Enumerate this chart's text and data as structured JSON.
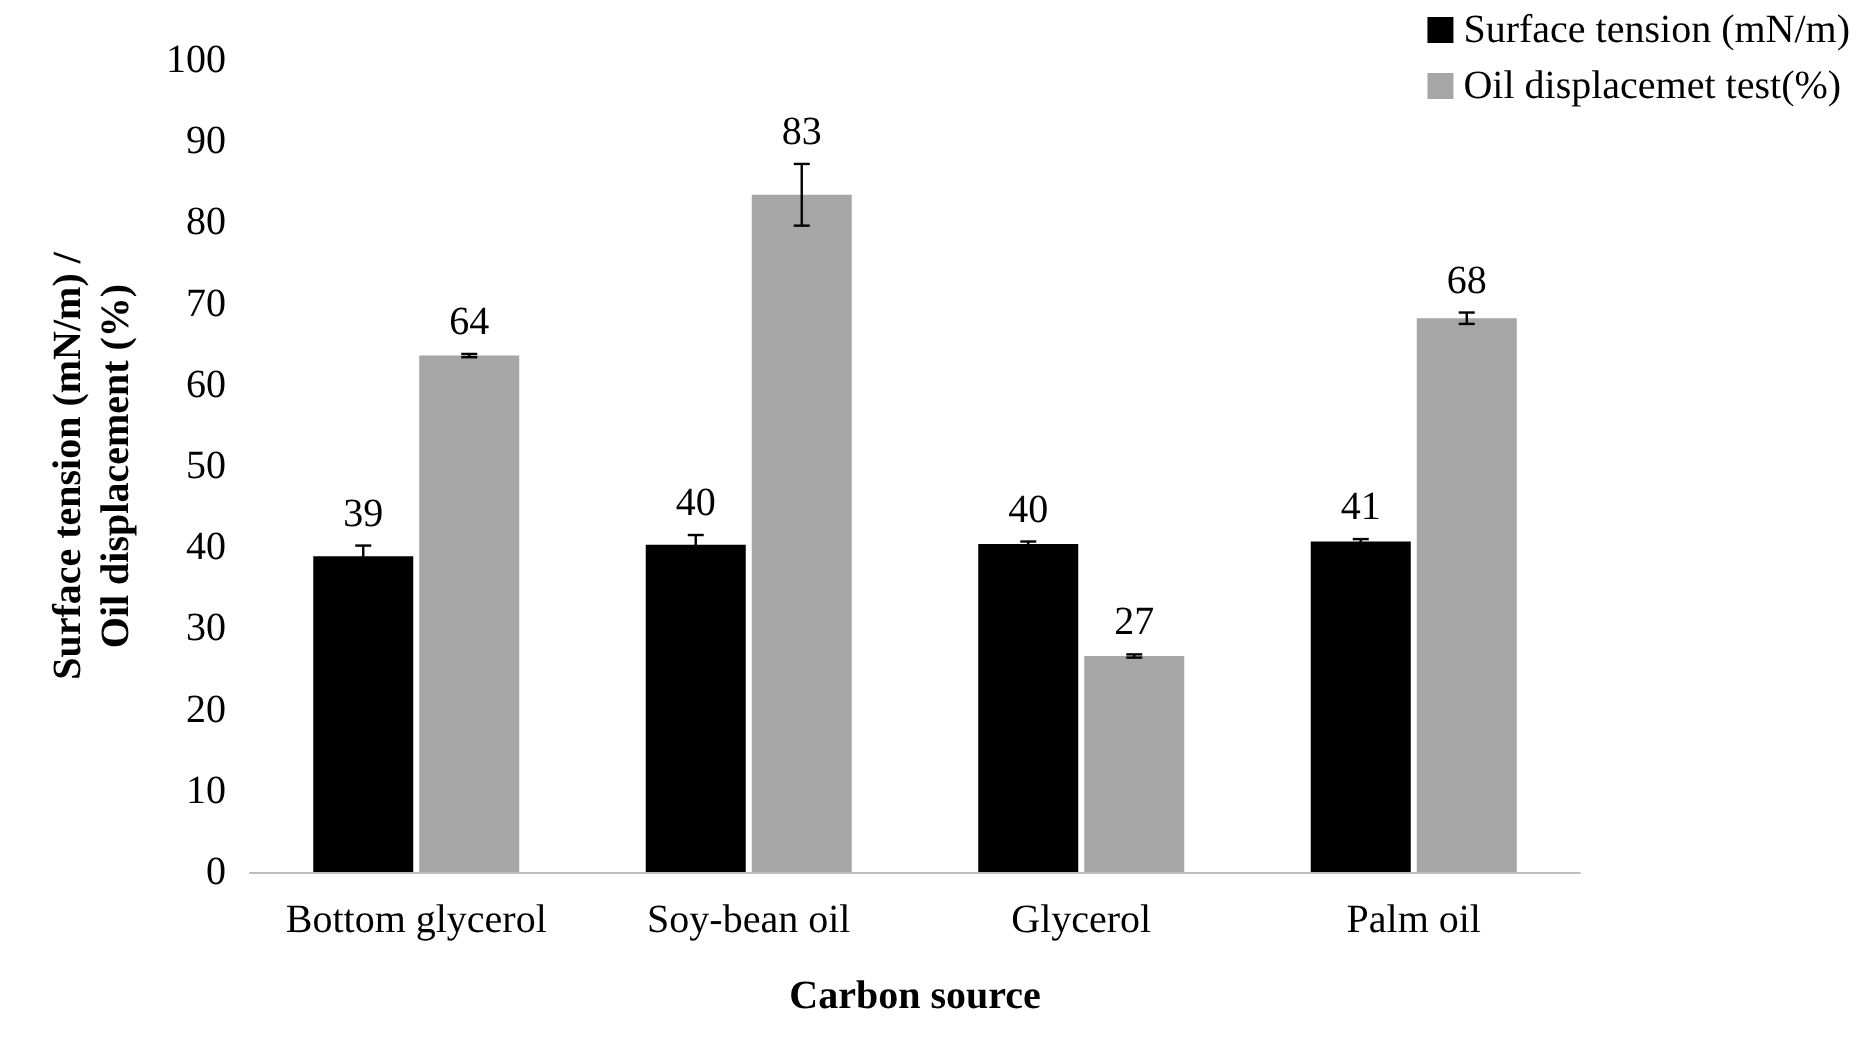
{
  "chart_data": {
    "type": "bar",
    "xlabel": "Carbon source",
    "ylabel": "Surface tension (mN/m) /\nOil displacement (%)",
    "categories": [
      "Bottom glycerol",
      "Soy-bean oil",
      "Glycerol",
      "Palm oil"
    ],
    "series": [
      {
        "name": "Surface tension (mN/m)",
        "color": "#000000",
        "values": [
          38.9,
          40.3,
          40.4,
          40.7
        ],
        "errors": [
          1.3,
          1.2,
          0.3,
          0.3
        ],
        "value_labels": [
          "39",
          "40",
          "40",
          "41"
        ]
      },
      {
        "name": "Oil displacemet test(%)",
        "color": "#a6a6a6",
        "values": [
          63.6,
          83.4,
          26.6,
          68.2
        ],
        "errors": [
          0.2,
          3.8,
          0.2,
          0.7
        ],
        "value_labels": [
          "64",
          "83",
          "27",
          "68"
        ]
      }
    ],
    "ylim": [
      0,
      100
    ],
    "yticks": [
      0,
      10,
      20,
      30,
      40,
      50,
      60,
      70,
      80,
      90,
      100
    ],
    "grid": false,
    "legend": "top right"
  }
}
